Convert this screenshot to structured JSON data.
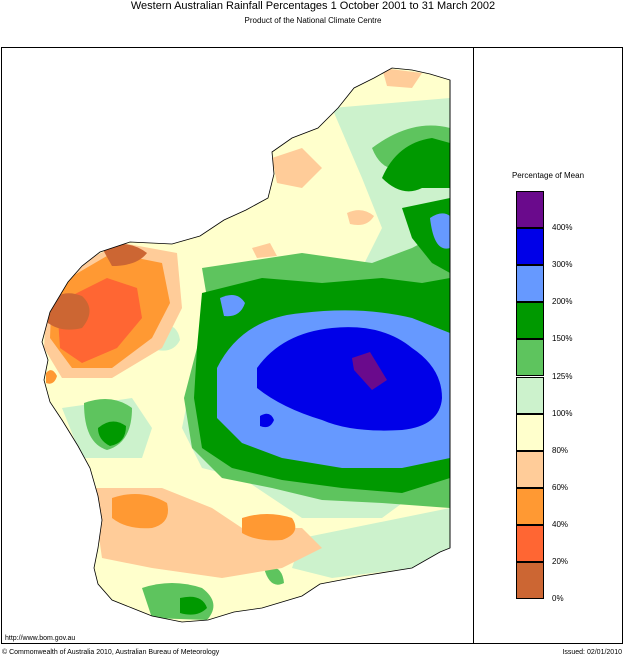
{
  "title": "Western Australian Rainfall Percentages 1 October 2001 to 31 March 2002",
  "subtitle": "Product of the National Climate Centre",
  "legend": {
    "title": "Percentage of Mean",
    "classes": [
      {
        "color": "#6a0a8c"
      },
      {
        "color": "#0000e8"
      },
      {
        "color": "#6699ff"
      },
      {
        "color": "#009900"
      },
      {
        "color": "#5ec45e"
      },
      {
        "color": "#ccf2cc"
      },
      {
        "color": "#ffffcc"
      },
      {
        "color": "#ffcc99"
      },
      {
        "color": "#ff9933"
      },
      {
        "color": "#ff6633"
      },
      {
        "color": "#cc6633"
      }
    ],
    "labels": [
      "400%",
      "300%",
      "200%",
      "150%",
      "125%",
      "100%",
      "80%",
      "60%",
      "40%",
      "20%",
      "0%"
    ]
  },
  "footer": {
    "url": "http://www.bom.gov.au",
    "copyright": "© Commonwealth of Australia 2010, Australian Bureau of Meteorology",
    "issued": "Issued: 02/01/2010"
  }
}
